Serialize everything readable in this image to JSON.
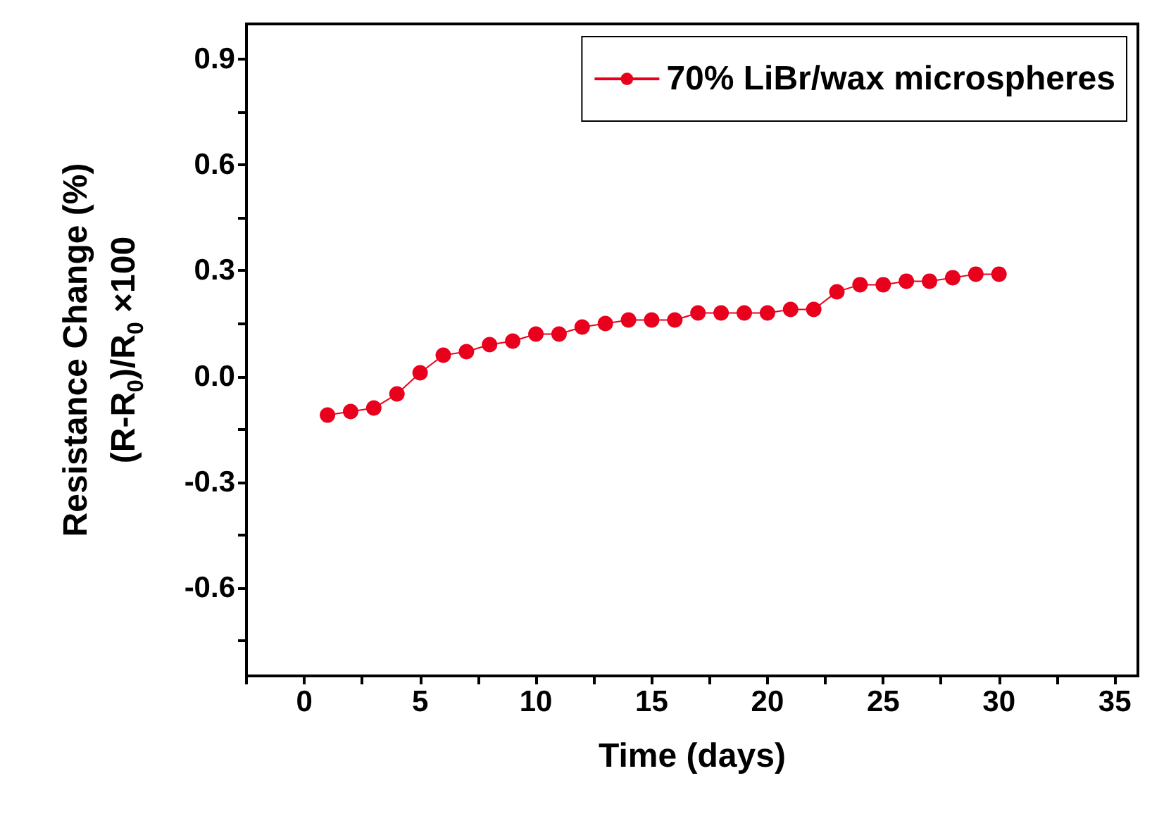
{
  "chart_data": {
    "type": "line",
    "xlabel": "Time (days)",
    "ylabel": "Resistance Change (%)\n(R-R$_{0}$)/R$_{0}$ ×100",
    "x": [
      1,
      2,
      3,
      4,
      5,
      6,
      7,
      8,
      9,
      10,
      11,
      12,
      13,
      14,
      15,
      16,
      17,
      18,
      19,
      20,
      21,
      22,
      23,
      24,
      25,
      26,
      27,
      28,
      29,
      30
    ],
    "series": [
      {
        "name": "70% LiBr/wax microspheres",
        "color": "#e8001c",
        "values": [
          -0.11,
          -0.1,
          -0.09,
          -0.05,
          0.01,
          0.06,
          0.07,
          0.09,
          0.1,
          0.12,
          0.12,
          0.14,
          0.15,
          0.16,
          0.16,
          0.16,
          0.18,
          0.18,
          0.18,
          0.18,
          0.19,
          0.19,
          0.24,
          0.26,
          0.26,
          0.27,
          0.27,
          0.28,
          0.29,
          0.29
        ]
      }
    ],
    "xlim": [
      -2.5,
      36
    ],
    "xticks": [
      {
        "value": -2.5,
        "label": null
      },
      0,
      {
        "value": 2.5,
        "label": null
      },
      5,
      {
        "value": 7.5,
        "label": null
      },
      10,
      {
        "value": 12.5,
        "label": null
      },
      15,
      {
        "value": 17.5,
        "label": null
      },
      20,
      {
        "value": 22.5,
        "label": null
      },
      25,
      {
        "value": 27.5,
        "label": null
      },
      30,
      {
        "value": 32.5,
        "label": null
      },
      35
    ],
    "ylim": [
      -0.85,
      1.0
    ],
    "yticks": [
      {
        "value": -0.75,
        "label": null
      },
      {
        "value": -0.6,
        "label": "-0.6"
      },
      {
        "value": -0.45,
        "label": null
      },
      {
        "value": -0.3,
        "label": "-0.3"
      },
      {
        "value": -0.15,
        "label": null
      },
      {
        "value": 0,
        "label": "0.0"
      },
      {
        "value": 0.15,
        "label": null
      },
      {
        "value": 0.3,
        "label": "0.3"
      },
      {
        "value": 0.45,
        "label": null
      },
      {
        "value": 0.6,
        "label": "0.6"
      },
      {
        "value": 0.75,
        "label": null
      },
      {
        "value": 0.9,
        "label": "0.9"
      }
    ],
    "grid": false,
    "legend": "top right",
    "marker": "circle",
    "line_style": "solid"
  }
}
